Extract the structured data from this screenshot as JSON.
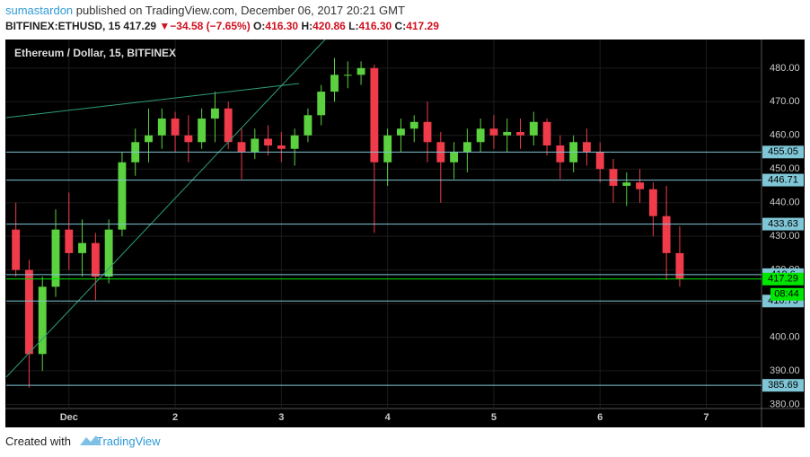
{
  "header": {
    "author": "sumastardon",
    "published": "published on TradingView.com, December 06, 2017 20:21 GMT",
    "symbol": "BITFINEX:ETHUSD, 15",
    "last": "417.29",
    "arrow": "▼",
    "change": "−34.58 (−7.65%)",
    "open_label": "O:",
    "open": "416.30",
    "high_label": "H:",
    "high": "420.86",
    "low_label": "L:",
    "low": "416.30",
    "close_label": "C:",
    "close": "417.29"
  },
  "chart_data": {
    "type": "candlestick",
    "title": "Ethereum / Dollar, 15, BITFINEX",
    "x": [
      0.5,
      0.625,
      0.75,
      0.875,
      1,
      1.125,
      1.25,
      1.375,
      1.5,
      1.625,
      1.75,
      1.875,
      2,
      2.125,
      2.25,
      2.375,
      2.5,
      2.625,
      2.75,
      2.875,
      3,
      3.125,
      3.25,
      3.375,
      3.5,
      3.625,
      3.75,
      3.875,
      4,
      4.125,
      4.25,
      4.375,
      4.5,
      4.625,
      4.75,
      4.875,
      5,
      5.125,
      5.25,
      5.375,
      5.5,
      5.625,
      5.75,
      5.875,
      6,
      6.125,
      6.25,
      6.375,
      6.5,
      6.625,
      6.75
    ],
    "open": [
      432,
      420,
      395,
      415,
      432,
      425,
      428,
      418,
      432,
      452,
      458,
      460,
      465,
      460,
      458,
      465,
      468,
      458,
      455,
      459,
      457,
      456,
      460,
      466,
      473,
      478,
      478,
      480,
      452,
      460,
      462,
      464,
      458,
      452,
      455,
      458,
      462,
      460,
      461,
      460,
      464,
      457,
      452,
      458,
      455,
      450,
      445,
      446,
      444,
      436,
      425
    ],
    "high": [
      440,
      423,
      418,
      438,
      443,
      435,
      431,
      435,
      455,
      462,
      468,
      468,
      467,
      466,
      468,
      473,
      470,
      462,
      462,
      463,
      461,
      462,
      468,
      475,
      483,
      482,
      482,
      481,
      462,
      465,
      466,
      470,
      461,
      458,
      462,
      465,
      466,
      465,
      465,
      467,
      465,
      460,
      460,
      462,
      458,
      453,
      449,
      450,
      446,
      445,
      433
    ],
    "low": [
      418,
      385,
      390,
      412,
      420,
      418,
      411,
      416,
      430,
      448,
      452,
      456,
      455,
      452,
      456,
      458,
      456,
      447,
      453,
      454,
      452,
      451,
      458,
      463,
      470,
      474,
      475,
      431,
      445,
      455,
      458,
      452,
      440,
      447,
      449,
      455,
      456,
      455,
      456,
      457,
      454,
      447,
      449,
      451,
      446,
      440,
      439,
      440,
      430,
      417,
      415
    ],
    "close": [
      420,
      395,
      415,
      432,
      425,
      428,
      418,
      432,
      452,
      458,
      460,
      465,
      460,
      458,
      465,
      468,
      458,
      455,
      459,
      457,
      456,
      460,
      466,
      473,
      478,
      478,
      480,
      452,
      460,
      462,
      464,
      458,
      452,
      455,
      458,
      462,
      460,
      461,
      460,
      464,
      457,
      452,
      458,
      455,
      450,
      445,
      446,
      444,
      436,
      425,
      417.29
    ],
    "up_color": "#5bd13f",
    "down_color": "#ef3b4a",
    "xlim": [
      0.41,
      7.52
    ],
    "xticks": [
      {
        "value": 1,
        "label": "Dec"
      },
      2,
      3,
      4,
      5,
      6,
      7
    ],
    "ylim": [
      378.8,
      488.5
    ],
    "yticks": [
      {
        "value": 380,
        "label": "380.00"
      },
      {
        "value": 390,
        "label": "390.00"
      },
      {
        "value": 400,
        "label": "400.00"
      },
      {
        "value": 410,
        "label": "410.00"
      },
      {
        "value": 420,
        "label": "420.00"
      },
      {
        "value": 430,
        "label": "430.00"
      },
      {
        "value": 440,
        "label": "440.00"
      },
      {
        "value": 450,
        "label": "450.00"
      },
      {
        "value": 460,
        "label": "460.00"
      },
      {
        "value": 470,
        "label": "470.00"
      },
      {
        "value": 480,
        "label": "480.00"
      }
    ],
    "levels": [
      455.05,
      446.71,
      433.63,
      418.6,
      410.75,
      385.69
    ],
    "level_color": "#7fc6d6",
    "last_price": 417.29,
    "last_color": "#00e600",
    "countdown": "08:44",
    "grid": true
  },
  "footer": {
    "created": "Created with",
    "brand": "TradingView"
  }
}
